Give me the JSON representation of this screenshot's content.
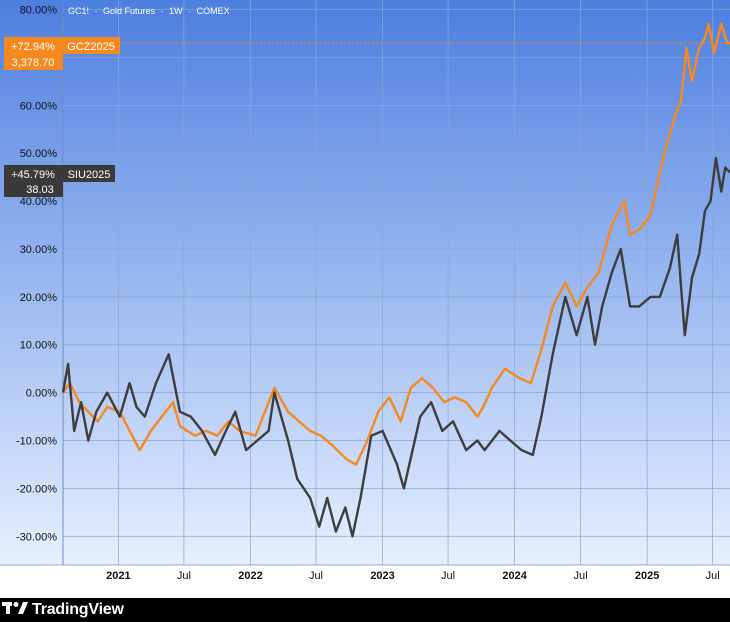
{
  "header": {
    "symbol": "GC1!",
    "sep1": "·",
    "name": "Gold Futures",
    "sep2": "·",
    "interval": "1W",
    "sep3": "·",
    "exchange": "COMEX"
  },
  "colors": {
    "background_top": "#4d7fe0",
    "background_bottom": "#e6f0ff",
    "gold": "#f5891f",
    "silver": "#3d3d3d",
    "grid": "#8aa6cf",
    "axis_text": "#111111"
  },
  "badges": {
    "gold": {
      "pct": "+72.94%",
      "symbol": "GCZ2025",
      "price": "3,378.70"
    },
    "silver": {
      "pct": "+45.79%",
      "symbol": "SIU2025",
      "price": "38.03"
    }
  },
  "brand": {
    "name": "TradingView"
  },
  "chart_data": {
    "type": "line",
    "y_unit": "%",
    "ylim": [
      -36,
      82
    ],
    "yticks": [
      "80.00%",
      "70.00%",
      "60.00%",
      "50.00%",
      "40.00%",
      "30.00%",
      "20.00%",
      "10.00%",
      "0.00%",
      "-10.00%",
      "-20.00%",
      "-30.00%"
    ],
    "ytick_values": [
      80,
      70,
      60,
      50,
      40,
      30,
      20,
      10,
      0,
      -10,
      -20,
      -30
    ],
    "xlim": [
      "2020-08-01",
      "2025-08-18"
    ],
    "xticks": [
      {
        "label": "2021",
        "date": "2021-01-01"
      },
      {
        "label": "Jul",
        "date": "2021-07-01"
      },
      {
        "label": "2022",
        "date": "2022-01-01"
      },
      {
        "label": "Jul",
        "date": "2022-07-01"
      },
      {
        "label": "2023",
        "date": "2023-01-01"
      },
      {
        "label": "Jul",
        "date": "2023-07-01"
      },
      {
        "label": "2024",
        "date": "2024-01-01"
      },
      {
        "label": "Jul",
        "date": "2024-07-01"
      },
      {
        "label": "2025",
        "date": "2025-01-01"
      },
      {
        "label": "Jul",
        "date": "2025-07-01"
      }
    ],
    "grid": true,
    "series": [
      {
        "name": "GCZ2025",
        "color": "#f5891f",
        "points": [
          [
            "2020-08-01",
            0
          ],
          [
            "2020-08-20",
            2
          ],
          [
            "2020-09-15",
            -2
          ],
          [
            "2020-10-10",
            -4
          ],
          [
            "2020-11-05",
            -6
          ],
          [
            "2020-12-01",
            -3
          ],
          [
            "2021-01-05",
            -4
          ],
          [
            "2021-02-01",
            -8
          ],
          [
            "2021-03-01",
            -12
          ],
          [
            "2021-04-01",
            -8
          ],
          [
            "2021-05-01",
            -5
          ],
          [
            "2021-06-01",
            -2
          ],
          [
            "2021-06-20",
            -7
          ],
          [
            "2021-07-10",
            -8
          ],
          [
            "2021-08-01",
            -9
          ],
          [
            "2021-09-01",
            -8
          ],
          [
            "2021-10-01",
            -9
          ],
          [
            "2021-11-01",
            -6
          ],
          [
            "2021-12-01",
            -8
          ],
          [
            "2022-01-15",
            -9
          ],
          [
            "2022-03-08",
            1
          ],
          [
            "2022-04-15",
            -4
          ],
          [
            "2022-05-15",
            -6
          ],
          [
            "2022-06-15",
            -8
          ],
          [
            "2022-07-15",
            -9
          ],
          [
            "2022-08-15",
            -11
          ],
          [
            "2022-09-25",
            -14
          ],
          [
            "2022-10-20",
            -15
          ],
          [
            "2022-11-20",
            -10
          ],
          [
            "2022-12-20",
            -4
          ],
          [
            "2023-01-20",
            -1
          ],
          [
            "2023-02-20",
            -6
          ],
          [
            "2023-03-20",
            1
          ],
          [
            "2023-04-20",
            3
          ],
          [
            "2023-05-20",
            1
          ],
          [
            "2023-06-20",
            -2
          ],
          [
            "2023-07-20",
            -1
          ],
          [
            "2023-08-20",
            -2
          ],
          [
            "2023-09-20",
            -5
          ],
          [
            "2023-10-06",
            -3
          ],
          [
            "2023-10-30",
            1
          ],
          [
            "2023-12-05",
            5
          ],
          [
            "2024-01-15",
            3
          ],
          [
            "2024-02-15",
            2
          ],
          [
            "2024-03-15",
            9
          ],
          [
            "2024-04-15",
            18
          ],
          [
            "2024-05-20",
            23
          ],
          [
            "2024-06-20",
            18
          ],
          [
            "2024-07-20",
            22
          ],
          [
            "2024-08-20",
            25
          ],
          [
            "2024-09-25",
            35
          ],
          [
            "2024-10-30",
            40
          ],
          [
            "2024-11-15",
            33
          ],
          [
            "2024-12-10",
            34
          ],
          [
            "2025-01-10",
            37
          ],
          [
            "2025-02-05",
            46
          ],
          [
            "2025-02-25",
            52
          ],
          [
            "2025-03-20",
            58
          ],
          [
            "2025-04-05",
            61
          ],
          [
            "2025-04-20",
            72
          ],
          [
            "2025-05-05",
            65
          ],
          [
            "2025-05-25",
            72
          ],
          [
            "2025-06-10",
            74
          ],
          [
            "2025-06-20",
            77
          ],
          [
            "2025-07-05",
            71
          ],
          [
            "2025-07-25",
            77
          ],
          [
            "2025-08-10",
            73
          ],
          [
            "2025-08-18",
            73
          ]
        ]
      },
      {
        "name": "SIU2025",
        "color": "#3d3d3d",
        "points": [
          [
            "2020-08-01",
            0
          ],
          [
            "2020-08-15",
            6
          ],
          [
            "2020-09-01",
            -8
          ],
          [
            "2020-09-20",
            -2
          ],
          [
            "2020-10-10",
            -10
          ],
          [
            "2020-11-01",
            -4
          ],
          [
            "2020-12-01",
            0
          ],
          [
            "2021-01-05",
            -5
          ],
          [
            "2021-02-01",
            2
          ],
          [
            "2021-02-20",
            -3
          ],
          [
            "2021-03-15",
            -5
          ],
          [
            "2021-04-15",
            2
          ],
          [
            "2021-05-20",
            8
          ],
          [
            "2021-06-20",
            -4
          ],
          [
            "2021-07-20",
            -5
          ],
          [
            "2021-08-20",
            -8
          ],
          [
            "2021-09-25",
            -13
          ],
          [
            "2021-10-25",
            -8
          ],
          [
            "2021-11-20",
            -4
          ],
          [
            "2021-12-20",
            -12
          ],
          [
            "2022-01-20",
            -10
          ],
          [
            "2022-02-20",
            -8
          ],
          [
            "2022-03-08",
            0
          ],
          [
            "2022-04-15",
            -10
          ],
          [
            "2022-05-10",
            -18
          ],
          [
            "2022-06-15",
            -22
          ],
          [
            "2022-07-10",
            -28
          ],
          [
            "2022-08-01",
            -22
          ],
          [
            "2022-08-25",
            -29
          ],
          [
            "2022-09-20",
            -24
          ],
          [
            "2022-10-10",
            -30
          ],
          [
            "2022-11-01",
            -22
          ],
          [
            "2022-12-01",
            -9
          ],
          [
            "2023-01-01",
            -8
          ],
          [
            "2023-02-10",
            -15
          ],
          [
            "2023-03-01",
            -20
          ],
          [
            "2023-04-15",
            -5
          ],
          [
            "2023-05-15",
            -2
          ],
          [
            "2023-06-15",
            -8
          ],
          [
            "2023-07-15",
            -6
          ],
          [
            "2023-08-20",
            -12
          ],
          [
            "2023-09-20",
            -10
          ],
          [
            "2023-10-10",
            -12
          ],
          [
            "2023-11-20",
            -8
          ],
          [
            "2023-12-20",
            -10
          ],
          [
            "2024-01-20",
            -12
          ],
          [
            "2024-02-20",
            -13
          ],
          [
            "2024-03-15",
            -5
          ],
          [
            "2024-04-15",
            8
          ],
          [
            "2024-05-20",
            20
          ],
          [
            "2024-06-20",
            12
          ],
          [
            "2024-07-20",
            20
          ],
          [
            "2024-08-10",
            10
          ],
          [
            "2024-08-30",
            18
          ],
          [
            "2024-09-25",
            25
          ],
          [
            "2024-10-20",
            30
          ],
          [
            "2024-11-15",
            18
          ],
          [
            "2024-12-10",
            18
          ],
          [
            "2025-01-10",
            20
          ],
          [
            "2025-02-05",
            20
          ],
          [
            "2025-03-05",
            26
          ],
          [
            "2025-03-25",
            33
          ],
          [
            "2025-04-05",
            22
          ],
          [
            "2025-04-15",
            12
          ],
          [
            "2025-05-05",
            24
          ],
          [
            "2025-05-25",
            29
          ],
          [
            "2025-06-10",
            38
          ],
          [
            "2025-06-25",
            40
          ],
          [
            "2025-07-10",
            49
          ],
          [
            "2025-07-25",
            42
          ],
          [
            "2025-08-05",
            47
          ],
          [
            "2025-08-18",
            46
          ]
        ]
      }
    ]
  }
}
